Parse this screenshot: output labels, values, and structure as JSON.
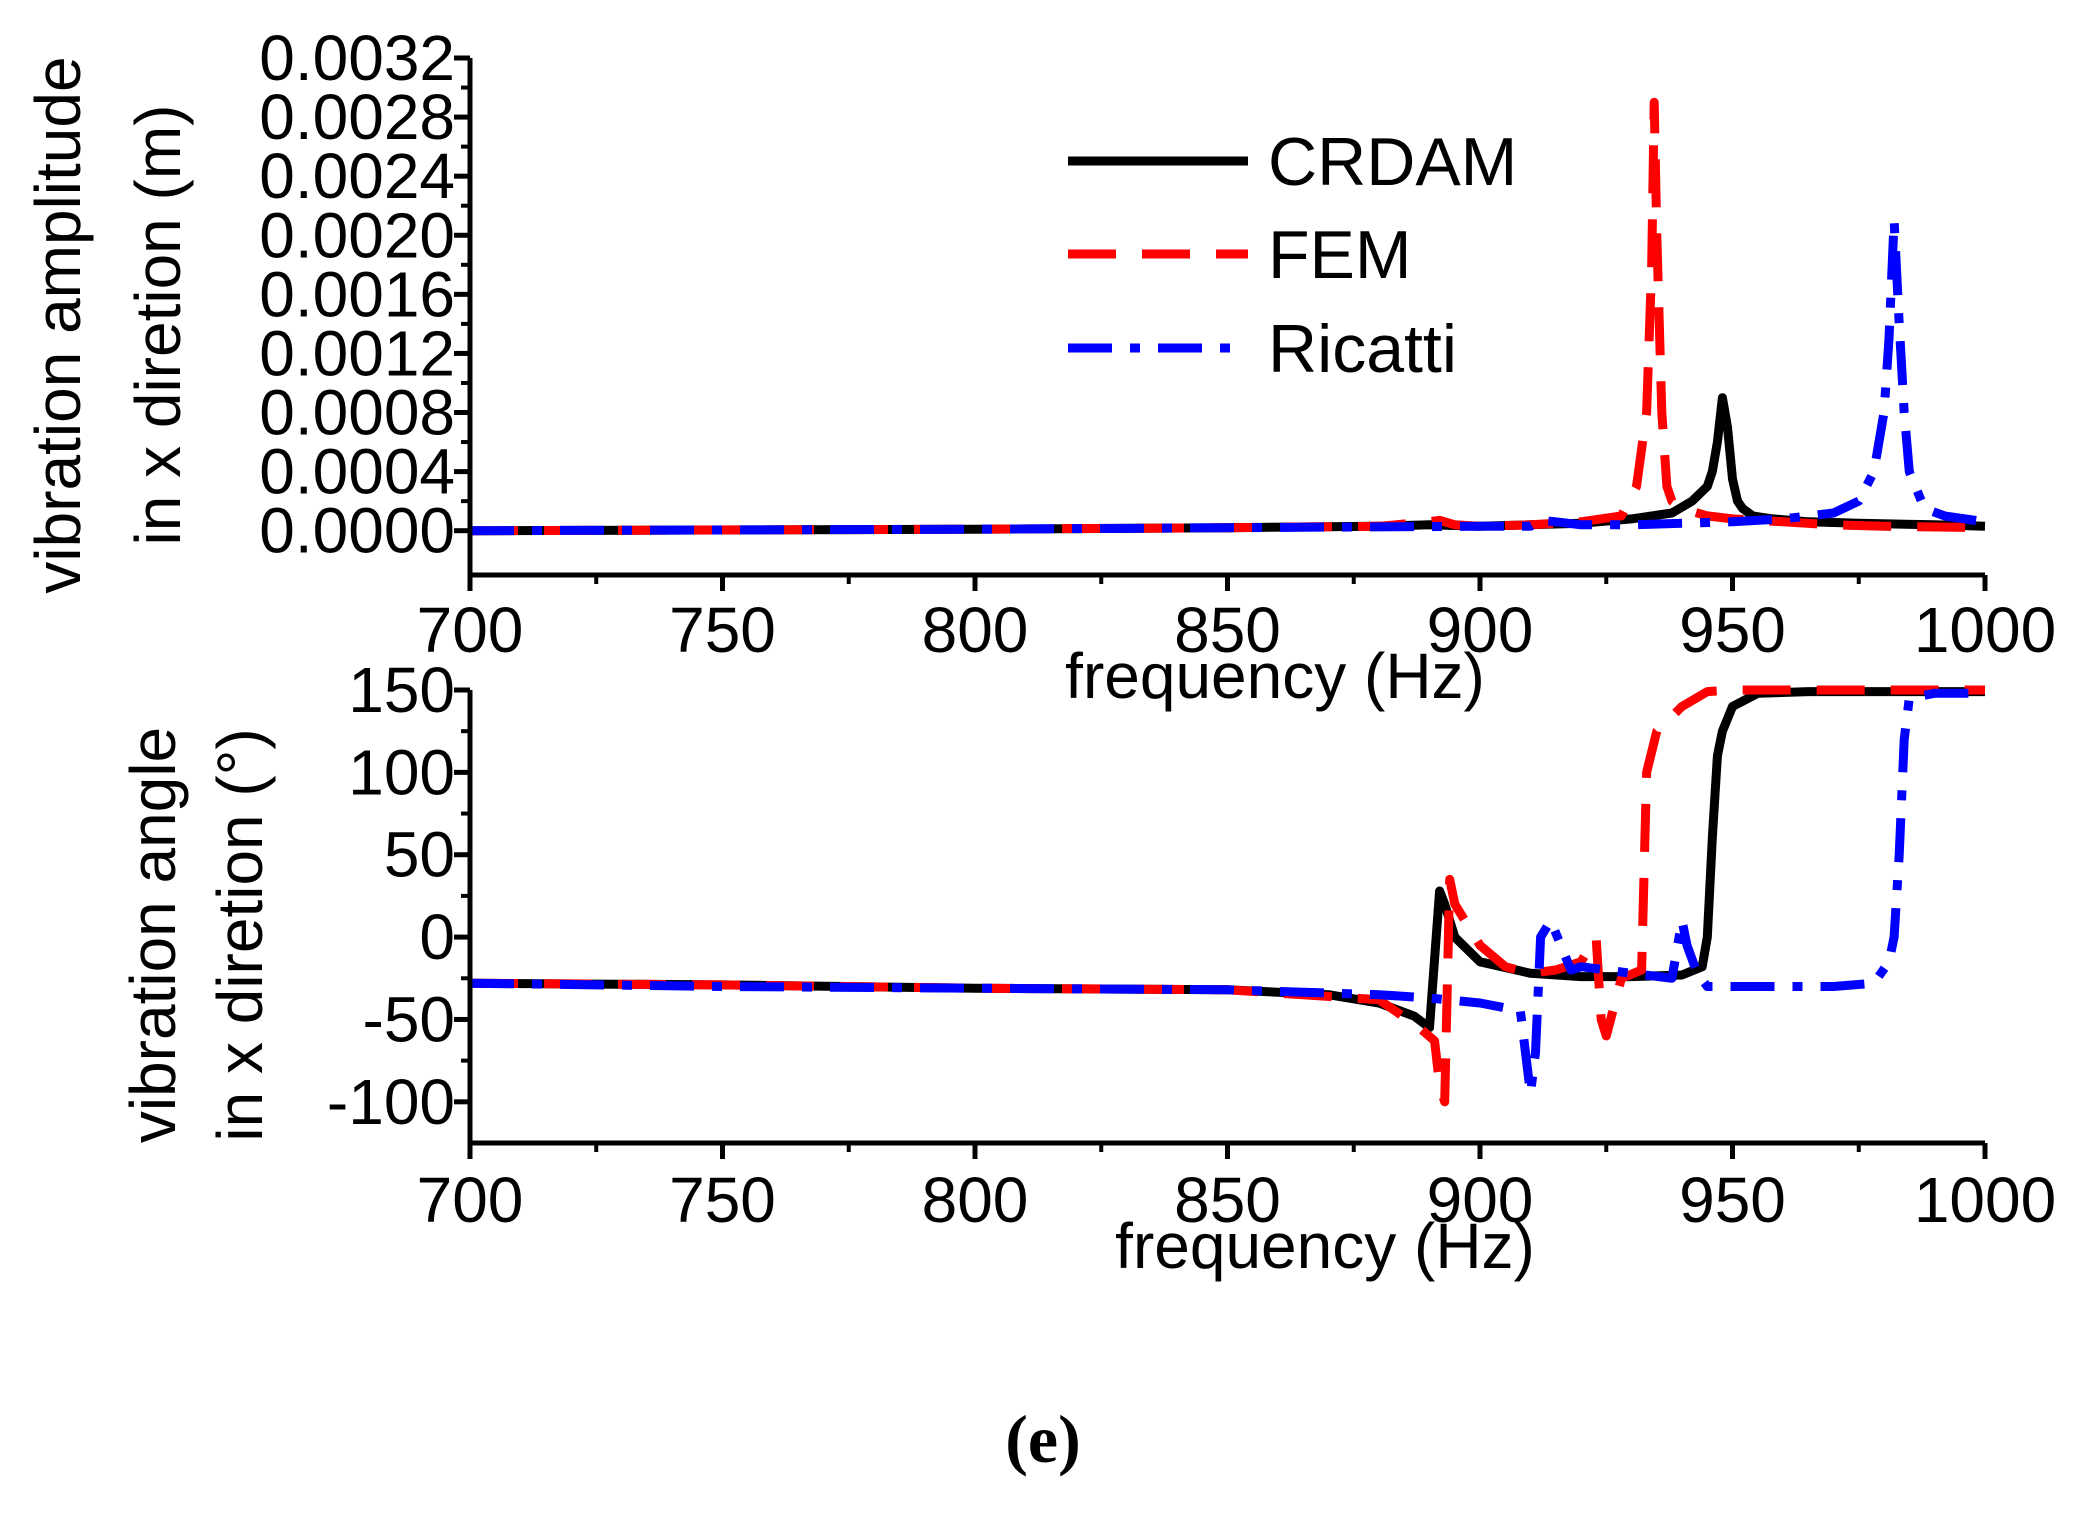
{
  "chart_data": [
    {
      "type": "line",
      "id": "amplitude",
      "xlabel": "frequency (Hz)",
      "ylabel": [
        "vibration amplitude",
        "in x diretion (m)"
      ],
      "xlim": [
        700,
        1000
      ],
      "ylim": [
        -0.0003,
        0.0032
      ],
      "xticks": [
        "700",
        "750",
        "800",
        "850",
        "900",
        "950",
        "1000"
      ],
      "yticks": [
        "0.0000",
        "0.0004",
        "0.0008",
        "0.0012",
        "0.0016",
        "0.0020",
        "0.0024",
        "0.0028",
        "0.0032"
      ],
      "legend": {
        "placement": "top-center",
        "entries": [
          "CRDAM",
          "FEM",
          "Ricatti"
        ]
      },
      "series": [
        {
          "name": "CRDAM",
          "color": "#000000",
          "dash": "solid",
          "x": [
            700,
            800,
            850,
            880,
            890,
            900,
            910,
            920,
            930,
            938,
            942,
            945,
            946,
            947,
            948,
            949,
            950,
            951,
            952,
            954,
            958,
            965,
            975,
            990,
            1000
          ],
          "y": [
            0.0,
            1e-05,
            2e-05,
            3e-05,
            4e-05,
            3e-05,
            4e-05,
            5e-05,
            8e-05,
            0.00012,
            0.0002,
            0.0003,
            0.0004,
            0.0006,
            0.0009,
            0.0007,
            0.00035,
            0.0002,
            0.00015,
            0.0001,
            8e-05,
            6e-05,
            5e-05,
            4e-05,
            3e-05
          ]
        },
        {
          "name": "FEM",
          "color": "#ff0000",
          "dash": "dashed",
          "x": [
            700,
            800,
            850,
            880,
            890,
            892,
            895,
            900,
            910,
            920,
            928,
            931,
            933,
            934,
            934.5,
            935,
            936,
            937,
            938,
            940,
            945,
            950,
            960,
            970,
            980,
            1000
          ],
          "y": [
            0.0,
            1e-05,
            2e-05,
            3e-05,
            6e-05,
            7e-05,
            4e-05,
            3e-05,
            4e-05,
            6e-05,
            0.0001,
            0.0003,
            0.0008,
            0.0018,
            0.0029,
            0.002,
            0.0008,
            0.0003,
            0.0002,
            0.00015,
            0.0001,
            8e-05,
            6e-05,
            4e-05,
            3e-05,
            2e-05
          ]
        },
        {
          "name": "Ricatti",
          "color": "#0000ff",
          "dash": "dashdot",
          "x": [
            700,
            800,
            850,
            900,
            910,
            912,
            915,
            920,
            930,
            940,
            950,
            960,
            970,
            975,
            978,
            980,
            981,
            982,
            983,
            984,
            985,
            988,
            992,
            1000
          ],
          "y": [
            0.0,
            1e-05,
            2e-05,
            3e-05,
            3e-05,
            7e-05,
            6e-05,
            4e-05,
            4e-05,
            5e-05,
            6e-05,
            8e-05,
            0.00012,
            0.0002,
            0.0004,
            0.0008,
            0.0013,
            0.0021,
            0.0014,
            0.0008,
            0.0004,
            0.00015,
            0.0001,
            6e-05
          ]
        }
      ]
    },
    {
      "type": "line",
      "id": "angle",
      "xlabel": "frequency (Hz)",
      "ylabel": [
        "vibration angle",
        "in x diretion (°)"
      ],
      "xlim": [
        700,
        1000
      ],
      "ylim": [
        -125,
        150
      ],
      "xticks": [
        "700",
        "750",
        "800",
        "850",
        "900",
        "950",
        "1000"
      ],
      "yticks": [
        "-100",
        "-50",
        "0",
        "50",
        "100",
        "150"
      ],
      "series": [
        {
          "name": "CRDAM",
          "color": "#000000",
          "dash": "solid",
          "x": [
            700,
            750,
            800,
            850,
            870,
            880,
            887,
            890,
            892,
            893,
            895,
            900,
            910,
            920,
            930,
            940,
            944,
            945,
            946,
            947,
            948,
            950,
            955,
            965,
            1000
          ],
          "y": [
            -28,
            -29,
            -31,
            -32,
            -35,
            -40,
            -48,
            -55,
            28,
            20,
            0,
            -15,
            -22,
            -24,
            -24,
            -23,
            -18,
            0,
            60,
            110,
            125,
            140,
            148,
            149,
            149
          ]
        },
        {
          "name": "FEM",
          "color": "#ff0000",
          "dash": "dashed",
          "x": [
            700,
            750,
            800,
            850,
            880,
            888,
            891,
            892,
            893,
            894,
            895,
            900,
            905,
            910,
            915,
            920,
            923,
            924,
            925,
            928,
            932,
            933,
            935,
            940,
            945,
            950,
            1000
          ],
          "y": [
            -28,
            -29,
            -31,
            -32,
            -38,
            -55,
            -63,
            -90,
            -100,
            35,
            20,
            -5,
            -18,
            -22,
            -20,
            -15,
            0,
            -50,
            -60,
            -25,
            -20,
            100,
            125,
            140,
            149,
            150,
            150
          ]
        },
        {
          "name": "Ricatti",
          "color": "#0000ff",
          "dash": "dashdot",
          "x": [
            700,
            750,
            800,
            850,
            880,
            890,
            900,
            905,
            908,
            910,
            911,
            912,
            914,
            916,
            918,
            920,
            930,
            938,
            940,
            941,
            943,
            945,
            950,
            960,
            970,
            978,
            981,
            982,
            983,
            984,
            985,
            990,
            1000
          ],
          "y": [
            -28,
            -30,
            -31,
            -32,
            -35,
            -37,
            -40,
            -43,
            -45,
            -95,
            -70,
            0,
            10,
            -5,
            -20,
            -18,
            -22,
            -25,
            10,
            -5,
            -22,
            -30,
            -30,
            -30,
            -30,
            -28,
            -15,
            0,
            50,
            120,
            145,
            148,
            148
          ]
        }
      ]
    }
  ],
  "caption": "(e)"
}
